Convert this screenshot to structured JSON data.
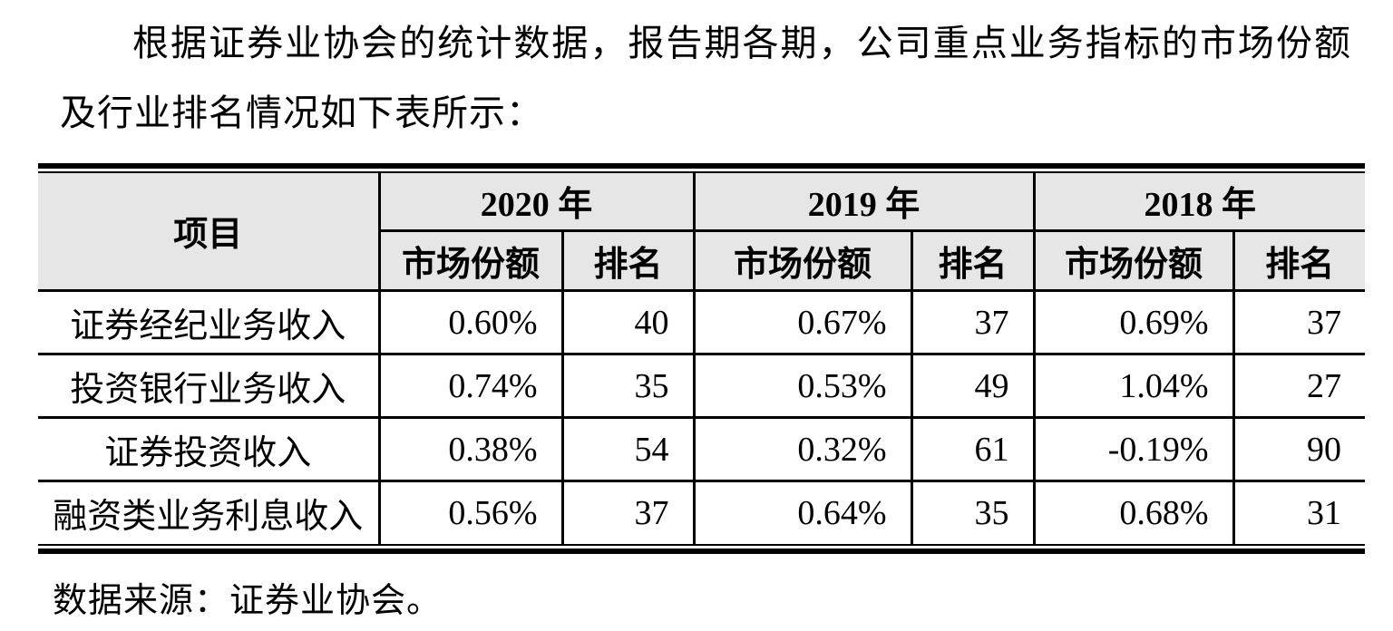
{
  "page": {
    "intro_text": "根据证券业协会的统计数据，报告期各期，公司重点业务指标的市场份额及行业排名情况如下表所示：",
    "source_note": "数据来源：证券业协会。"
  },
  "table": {
    "item_header": "项目",
    "year_groups": [
      {
        "label": "2020 年",
        "sub": [
          "市场份额",
          "排名"
        ]
      },
      {
        "label": "2019 年",
        "sub": [
          "市场份额",
          "排名"
        ]
      },
      {
        "label": "2018 年",
        "sub": [
          "市场份额",
          "排名"
        ]
      }
    ],
    "rows": [
      {
        "item": "证券经纪业务收入",
        "values": [
          "0.60%",
          "40",
          "0.67%",
          "37",
          "0.69%",
          "37"
        ]
      },
      {
        "item": "投资银行业务收入",
        "values": [
          "0.74%",
          "35",
          "0.53%",
          "49",
          "1.04%",
          "27"
        ]
      },
      {
        "item": "证券投资收入",
        "values": [
          "0.38%",
          "54",
          "0.32%",
          "61",
          "-0.19%",
          "90"
        ]
      },
      {
        "item": "融资类业务利息收入",
        "values": [
          "0.56%",
          "37",
          "0.64%",
          "35",
          "0.68%",
          "31"
        ]
      }
    ],
    "colors": {
      "header_bg": "#e6e6e6",
      "rule": "#000000",
      "text": "#000000",
      "page_bg": "#ffffff"
    }
  }
}
